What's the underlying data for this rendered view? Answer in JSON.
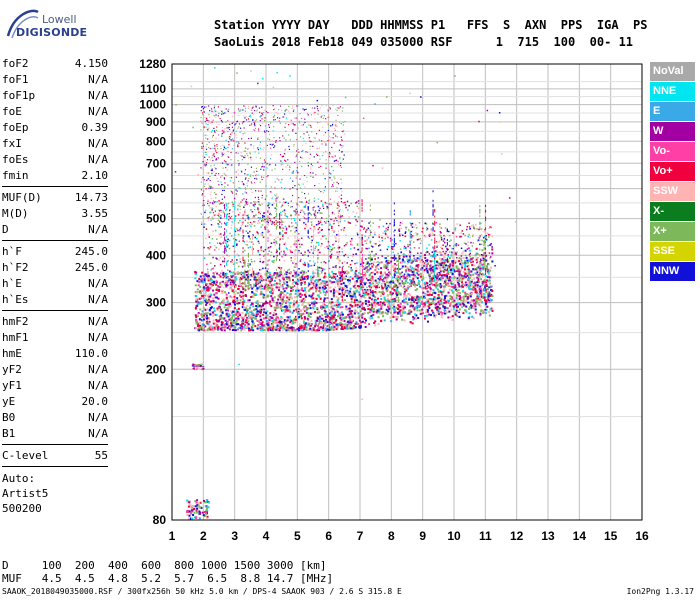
{
  "logo": {
    "brand": "Lowell",
    "product": "DIGISONDE"
  },
  "header": {
    "line1": "Station YYYY DAY   DDD HHMMSS P1   FFS  S  AXN  PPS  IGA  PS",
    "line2": "SaoLuis 2018 Feb18 049 035000 RSF      1  715  100  00- 11"
  },
  "params": {
    "group1": [
      {
        "k": "foF2",
        "v": "4.150"
      },
      {
        "k": "foF1",
        "v": "N/A"
      },
      {
        "k": "foF1p",
        "v": "N/A"
      },
      {
        "k": "foE",
        "v": "N/A"
      },
      {
        "k": "foEp",
        "v": "0.39"
      },
      {
        "k": "fxI",
        "v": "N/A"
      },
      {
        "k": "foEs",
        "v": "N/A"
      },
      {
        "k": "fmin",
        "v": "2.10"
      }
    ],
    "group2": [
      {
        "k": "MUF(D)",
        "v": "14.73"
      },
      {
        "k": "M(D)",
        "v": "3.55"
      },
      {
        "k": "D",
        "v": "N/A"
      }
    ],
    "group3": [
      {
        "k": "h`F",
        "v": "245.0"
      },
      {
        "k": "h`F2",
        "v": "245.0"
      },
      {
        "k": "h`E",
        "v": "N/A"
      },
      {
        "k": "h`Es",
        "v": "N/A"
      }
    ],
    "group4": [
      {
        "k": "hmF2",
        "v": "N/A"
      },
      {
        "k": "hmF1",
        "v": "N/A"
      },
      {
        "k": "hmE",
        "v": "110.0"
      },
      {
        "k": "yF2",
        "v": "N/A"
      },
      {
        "k": "yF1",
        "v": "N/A"
      },
      {
        "k": "yE",
        "v": "20.0"
      },
      {
        "k": "B0",
        "v": "N/A"
      },
      {
        "k": "B1",
        "v": "N/A"
      }
    ],
    "group5": [
      {
        "k": "C-level",
        "v": "55"
      }
    ]
  },
  "autoscaling": [
    "Auto:",
    "Artist5",
    "500200"
  ],
  "legend": [
    {
      "label": "NoVal",
      "color": "#a9a9a9"
    },
    {
      "label": "NNE",
      "color": "#00e5f0"
    },
    {
      "label": "E",
      "color": "#3aa9e8"
    },
    {
      "label": "W",
      "color": "#a300a3"
    },
    {
      "label": "Vo-",
      "color": "#ff3fa6"
    },
    {
      "label": "Vo+",
      "color": "#f0003c"
    },
    {
      "label": "SSW",
      "color": "#ffb3b3"
    },
    {
      "label": "X-",
      "color": "#0a7d1e"
    },
    {
      "label": "X+",
      "color": "#7db85a"
    },
    {
      "label": "SSE",
      "color": "#d4d400"
    },
    {
      "label": "NNW",
      "color": "#1010d8"
    }
  ],
  "footer": {
    "d_line": "D     100  200  400  600  800 1000 1500 3000 [km]",
    "muf_line": "MUF   4.5  4.5  4.8  5.2  5.7  6.5  8.8 14.7 [MHz]",
    "info": "SAAOK_2018049035000.RSF / 300fx256h 50 kHz 5.0 km / DPS-4 SAAOK 903 / 2.6 S 315.8 E",
    "version": "Ion2Png 1.3.17"
  },
  "chart_data": {
    "type": "scatter",
    "title": "",
    "xlabel": "",
    "ylabel": "",
    "xlim": [
      1,
      16
    ],
    "ylim": [
      80,
      1280
    ],
    "x_ticks": [
      1,
      2,
      3,
      4,
      5,
      6,
      7,
      8,
      9,
      10,
      11,
      12,
      13,
      14,
      15,
      16
    ],
    "y_ticks": [
      80,
      200,
      300,
      400,
      500,
      600,
      700,
      800,
      900,
      1000,
      1100,
      1280
    ],
    "y_scale": "log",
    "grid": true,
    "echo_regions": [
      {
        "name": "F-layer main trace",
        "x": [
          1.7,
          11.2
        ],
        "y": [
          250,
          360
        ]
      },
      {
        "name": "F-layer spread",
        "x": [
          2.0,
          11.2
        ],
        "y": [
          300,
          450
        ]
      },
      {
        "name": "multiple reflection",
        "x": [
          1.8,
          6.5
        ],
        "y": [
          500,
          1000
        ]
      },
      {
        "name": "low echoes",
        "x": [
          1.5,
          2.1
        ],
        "y": [
          80,
          95
        ]
      }
    ]
  }
}
